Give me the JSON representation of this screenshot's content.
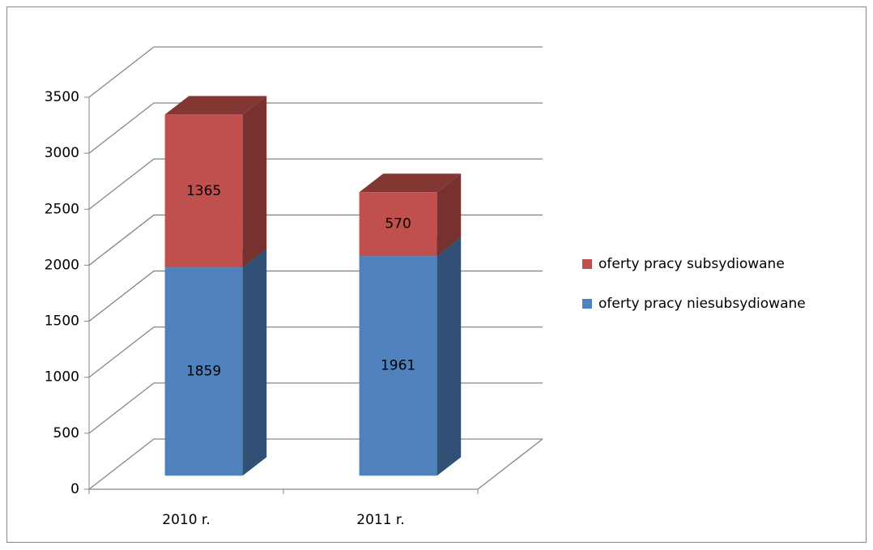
{
  "chart_data": {
    "type": "bar3d_stacked",
    "categories": [
      "2010 r.",
      "2011 r."
    ],
    "series": [
      {
        "name": "oferty pracy niesubsydiowane",
        "color": "#4f81bd",
        "values": [
          1859,
          1961
        ]
      },
      {
        "name": "oferty pracy subsydiowane",
        "color": "#c0504d",
        "values": [
          1365,
          570
        ]
      }
    ],
    "ylim": [
      0,
      3500
    ],
    "yticks": [
      0,
      500,
      1000,
      1500,
      2000,
      2500,
      3000,
      3500
    ],
    "grid": true,
    "legend": "right"
  }
}
